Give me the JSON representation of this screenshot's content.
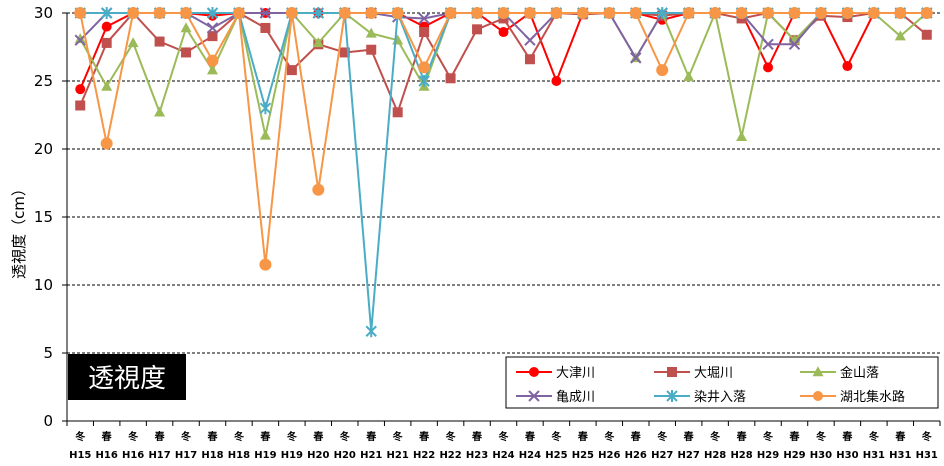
{
  "chart_data": {
    "type": "line",
    "ylabel": "透視度（cm）",
    "ylim": [
      0,
      30
    ],
    "yticks": [
      0,
      5,
      10,
      15,
      20,
      25,
      30
    ],
    "grid": true,
    "title_box": "透視度",
    "legend_position": "bottom-right",
    "categories": [
      {
        "season": "冬",
        "year": "H15"
      },
      {
        "season": "春",
        "year": "H16"
      },
      {
        "season": "冬",
        "year": "H16"
      },
      {
        "season": "春",
        "year": "H17"
      },
      {
        "season": "冬",
        "year": "H17"
      },
      {
        "season": "春",
        "year": "H18"
      },
      {
        "season": "冬",
        "year": "H18"
      },
      {
        "season": "春",
        "year": "H19"
      },
      {
        "season": "冬",
        "year": "H19"
      },
      {
        "season": "春",
        "year": "H20"
      },
      {
        "season": "冬",
        "year": "H20"
      },
      {
        "season": "春",
        "year": "H21"
      },
      {
        "season": "冬",
        "year": "H21"
      },
      {
        "season": "春",
        "year": "H22"
      },
      {
        "season": "冬",
        "year": "H22"
      },
      {
        "season": "春",
        "year": "H23"
      },
      {
        "season": "冬",
        "year": "H24"
      },
      {
        "season": "春",
        "year": "H24"
      },
      {
        "season": "冬",
        "year": "H25"
      },
      {
        "season": "春",
        "year": "H25"
      },
      {
        "season": "冬",
        "year": "H26"
      },
      {
        "season": "春",
        "year": "H26"
      },
      {
        "season": "冬",
        "year": "H27"
      },
      {
        "season": "春",
        "year": "H27"
      },
      {
        "season": "冬",
        "year": "H28"
      },
      {
        "season": "春",
        "year": "H28"
      },
      {
        "season": "冬",
        "year": "H29"
      },
      {
        "season": "春",
        "year": "H29"
      },
      {
        "season": "冬",
        "year": "H30"
      },
      {
        "season": "春",
        "year": "H30"
      },
      {
        "season": "冬",
        "year": "H31"
      },
      {
        "season": "春",
        "year": "H31"
      },
      {
        "season": "冬",
        "year": "H31"
      }
    ],
    "series": [
      {
        "name": "大津川",
        "color": "#ff0000",
        "marker": "circle",
        "values": [
          24.4,
          29,
          30,
          30,
          30,
          29.8,
          30,
          30,
          30,
          30,
          30,
          30,
          30,
          29,
          30,
          30,
          28.6,
          30,
          25,
          30,
          30,
          30,
          29.5,
          30,
          30,
          30,
          26,
          30,
          30,
          26.1,
          30,
          30,
          30
        ]
      },
      {
        "name": "大堀川",
        "color": "#c0504d",
        "marker": "square",
        "values": [
          23.2,
          27.8,
          30,
          27.9,
          27.1,
          28.3,
          30,
          28.9,
          25.8,
          27.7,
          27.1,
          27.3,
          22.7,
          28.6,
          25.2,
          28.8,
          29.6,
          26.6,
          30,
          29.9,
          30,
          30,
          29.8,
          30,
          30,
          29.6,
          30,
          28,
          29.8,
          29.7,
          30,
          30,
          28.4
        ]
      },
      {
        "name": "金山落",
        "color": "#9bbb59",
        "marker": "triangle",
        "values": [
          28.1,
          24.6,
          27.8,
          22.7,
          28.9,
          25.8,
          30,
          21,
          30,
          27.8,
          30,
          28.5,
          28,
          24.6,
          30,
          30,
          30,
          30,
          30,
          30,
          30,
          26.7,
          30,
          25.3,
          30,
          20.9,
          30,
          28,
          30,
          30,
          30,
          28.3,
          30
        ]
      },
      {
        "name": "亀成川",
        "color": "#8064a2",
        "marker": "x",
        "values": [
          28,
          30,
          30,
          30,
          30,
          28.9,
          30,
          30,
          30,
          30,
          30,
          30,
          29.7,
          29.6,
          30,
          30,
          30,
          28,
          30,
          30,
          30,
          26.7,
          30,
          30,
          30,
          30,
          27.7,
          27.7,
          30,
          30,
          30,
          30,
          30
        ]
      },
      {
        "name": "染井入落",
        "color": "#4bacc6",
        "marker": "star",
        "values": [
          30,
          30,
          30,
          30,
          30,
          30,
          30,
          23,
          30,
          30,
          30,
          6.6,
          30,
          25,
          30,
          30,
          30,
          30,
          30,
          30,
          30,
          30,
          30,
          30,
          30,
          30,
          30,
          30,
          30,
          30,
          30,
          30,
          30
        ]
      },
      {
        "name": "湖北集水路",
        "color": "#f79646",
        "marker": "circle",
        "values": [
          30,
          20.4,
          30,
          30,
          30,
          26.5,
          30,
          11.5,
          30,
          17,
          30,
          30,
          30,
          26,
          30,
          30,
          30,
          30,
          30,
          30,
          30,
          30,
          25.8,
          30,
          30,
          30,
          30,
          30,
          30,
          30,
          30,
          30,
          30
        ]
      }
    ]
  }
}
